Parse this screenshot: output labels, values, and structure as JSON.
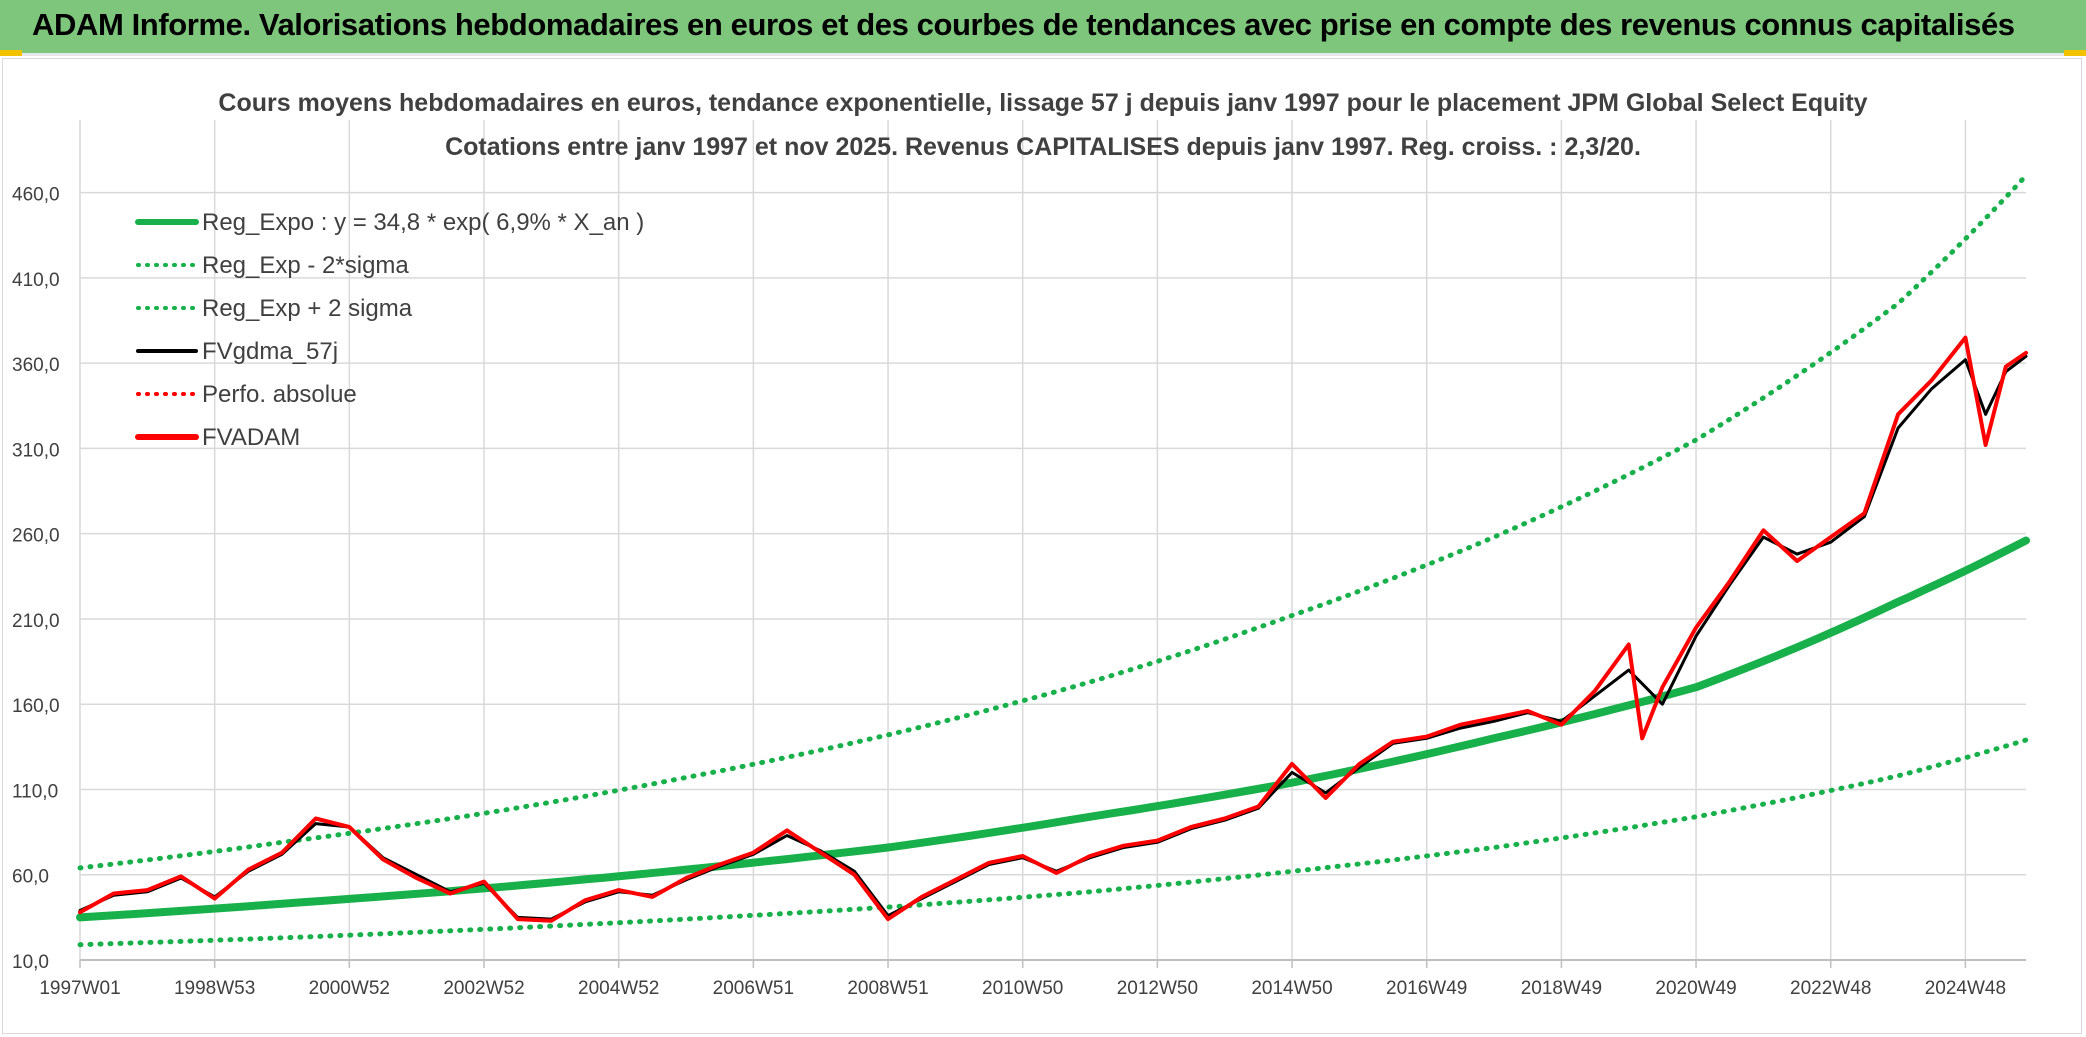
{
  "banner": {
    "title": "ADAM Informe. Valorisations hebdomadaires en euros et des courbes de tendances avec prise en compte des revenus connus capitalisés"
  },
  "colors": {
    "banner_bg": "#7dc67b",
    "reg_expo": "#18b04a",
    "black": "#000000",
    "red": "#ff0000",
    "grid": "#d9d9d9",
    "text": "#404040",
    "corner_accent": "#f2c200"
  },
  "chart_data": {
    "type": "line",
    "title": "Cours moyens hebdomadaires en euros, tendance exponentielle, lissage 57 j depuis janv 1997 pour le placement JPM Global Select Equity",
    "subtitle": "Cotations entre janv 1997 et nov 2025. Revenus CAPITALISES depuis janv 1997. Reg. croiss. : 2,3/20.",
    "xlabel": "",
    "ylabel": "",
    "x_range": [
      1997.0,
      2025.9
    ],
    "ylim": [
      10,
      485
    ],
    "yticks": [
      10,
      60,
      110,
      160,
      210,
      260,
      310,
      360,
      410,
      460
    ],
    "ytick_labels": [
      "10,0",
      "60,0",
      "110,0",
      "160,0",
      "210,0",
      "260,0",
      "310,0",
      "360,0",
      "410,0",
      "460,0"
    ],
    "xticks": [
      {
        "x": 1997.0,
        "label": "1997W01"
      },
      {
        "x": 1999.0,
        "label": "1998W53"
      },
      {
        "x": 2001.0,
        "label": "2000W52"
      },
      {
        "x": 2003.0,
        "label": "2002W52"
      },
      {
        "x": 2005.0,
        "label": "2004W52"
      },
      {
        "x": 2007.0,
        "label": "2006W51"
      },
      {
        "x": 2009.0,
        "label": "2008W51"
      },
      {
        "x": 2011.0,
        "label": "2010W50"
      },
      {
        "x": 2013.0,
        "label": "2012W50"
      },
      {
        "x": 2015.0,
        "label": "2014W50"
      },
      {
        "x": 2017.0,
        "label": "2016W49"
      },
      {
        "x": 2019.0,
        "label": "2018W49"
      },
      {
        "x": 2021.0,
        "label": "2020W49"
      },
      {
        "x": 2023.0,
        "label": "2022W48"
      },
      {
        "x": 2025.0,
        "label": "2024W48"
      }
    ],
    "grid": true,
    "legend_position": "top-left",
    "legend": [
      {
        "label": "Reg_Expo : y = 34,8 * exp( 6,9% *  X_an )",
        "color": "#18b04a",
        "style": "solid-thick"
      },
      {
        "label": "Reg_Exp - 2*sigma",
        "color": "#18b04a",
        "style": "dotted"
      },
      {
        "label": "Reg_Exp + 2 sigma",
        "color": "#18b04a",
        "style": "dotted"
      },
      {
        "label": "FVgdma_57j",
        "color": "#000000",
        "style": "solid"
      },
      {
        "label": "Perfo. absolue",
        "color": "#ff0000",
        "style": "dotted"
      },
      {
        "label": "FVADAM",
        "color": "#ff0000",
        "style": "solid-thick"
      }
    ],
    "series": [
      {
        "name": "Reg_Expo : y = 34,8 * exp( 6,9% *  X_an )",
        "color": "#18b04a",
        "x": [
          1997.0,
          2000.0,
          2003.0,
          2006.0,
          2009.0,
          2012.0,
          2015.0,
          2018.0,
          2021.0,
          2024.0,
          2025.9
        ],
        "y": [
          35,
          43,
          52,
          63,
          76,
          94,
          114,
          140,
          170,
          220,
          256
        ]
      },
      {
        "name": "Reg_Exp - 2*sigma",
        "color": "#18b04a",
        "x": [
          1997.0,
          2000.0,
          2003.0,
          2006.0,
          2009.0,
          2012.0,
          2015.0,
          2018.0,
          2021.0,
          2024.0,
          2025.9
        ],
        "y": [
          19,
          23,
          28,
          34,
          41,
          50,
          62,
          76,
          94,
          118,
          139
        ]
      },
      {
        "name": "Reg_Exp + 2 sigma",
        "color": "#18b04a",
        "x": [
          1997.0,
          2000.0,
          2003.0,
          2006.0,
          2009.0,
          2012.0,
          2015.0,
          2018.0,
          2021.0,
          2024.0,
          2025.9
        ],
        "y": [
          64,
          79,
          96,
          117,
          142,
          173,
          212,
          258,
          315,
          395,
          470
        ]
      },
      {
        "name": "FVgdma_57j",
        "color": "#000000",
        "x": [
          1997.0,
          1997.5,
          1998.0,
          1998.5,
          1999.0,
          1999.5,
          2000.0,
          2000.5,
          2001.0,
          2001.5,
          2002.0,
          2002.5,
          2003.0,
          2003.5,
          2004.0,
          2004.5,
          2005.0,
          2005.5,
          2006.0,
          2006.5,
          2007.0,
          2007.5,
          2008.0,
          2008.5,
          2009.0,
          2009.5,
          2010.0,
          2010.5,
          2011.0,
          2011.5,
          2012.0,
          2012.5,
          2013.0,
          2013.5,
          2014.0,
          2014.5,
          2015.0,
          2015.5,
          2016.0,
          2016.5,
          2017.0,
          2017.5,
          2018.0,
          2018.5,
          2019.0,
          2019.5,
          2020.0,
          2020.5,
          2021.0,
          2021.5,
          2022.0,
          2022.5,
          2023.0,
          2023.5,
          2024.0,
          2024.5,
          2025.0,
          2025.3,
          2025.6,
          2025.9
        ],
        "y": [
          39,
          48,
          50,
          58,
          47,
          62,
          72,
          90,
          88,
          70,
          60,
          50,
          55,
          35,
          34,
          44,
          50,
          48,
          57,
          65,
          72,
          83,
          74,
          62,
          36,
          46,
          56,
          66,
          70,
          62,
          70,
          76,
          79,
          87,
          92,
          99,
          120,
          108,
          123,
          137,
          140,
          146,
          150,
          155,
          150,
          165,
          180,
          160,
          200,
          230,
          258,
          248,
          255,
          270,
          322,
          345,
          362,
          330,
          355,
          364
        ]
      },
      {
        "name": "FVADAM",
        "color": "#ff0000",
        "x": [
          1997.0,
          1997.5,
          1998.0,
          1998.5,
          1999.0,
          1999.5,
          2000.0,
          2000.5,
          2001.0,
          2001.5,
          2002.0,
          2002.5,
          2003.0,
          2003.5,
          2004.0,
          2004.5,
          2005.0,
          2005.5,
          2006.0,
          2006.5,
          2007.0,
          2007.5,
          2008.0,
          2008.5,
          2009.0,
          2009.5,
          2010.0,
          2010.5,
          2011.0,
          2011.5,
          2012.0,
          2012.5,
          2013.0,
          2013.5,
          2014.0,
          2014.5,
          2015.0,
          2015.5,
          2016.0,
          2016.5,
          2017.0,
          2017.5,
          2018.0,
          2018.5,
          2019.0,
          2019.5,
          2020.0,
          2020.2,
          2020.5,
          2021.0,
          2021.5,
          2022.0,
          2022.5,
          2023.0,
          2023.5,
          2024.0,
          2024.5,
          2025.0,
          2025.3,
          2025.6,
          2025.9
        ],
        "y": [
          38,
          49,
          51,
          59,
          46,
          63,
          73,
          93,
          88,
          69,
          58,
          49,
          56,
          34,
          33,
          45,
          51,
          47,
          58,
          66,
          73,
          86,
          73,
          60,
          34,
          47,
          57,
          67,
          71,
          61,
          71,
          77,
          80,
          88,
          93,
          100,
          125,
          105,
          125,
          138,
          141,
          148,
          152,
          156,
          148,
          168,
          195,
          140,
          170,
          205,
          232,
          262,
          244,
          258,
          272,
          330,
          350,
          375,
          312,
          358,
          366
        ]
      }
    ]
  }
}
